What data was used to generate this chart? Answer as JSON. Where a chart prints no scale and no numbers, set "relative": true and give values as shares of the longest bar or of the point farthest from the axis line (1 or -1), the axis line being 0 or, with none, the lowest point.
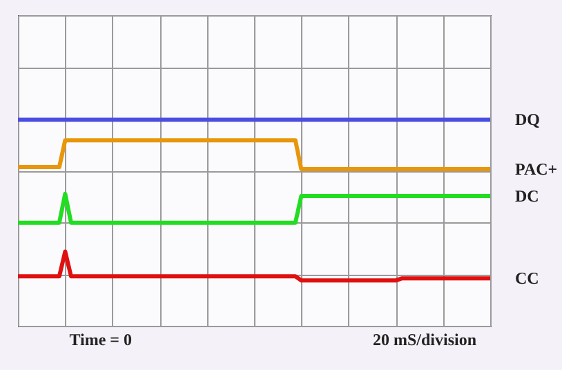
{
  "chart_data": {
    "type": "line",
    "relative": true,
    "grid": true,
    "marker": "none",
    "line_style": "solid",
    "categories": [
      null,
      null,
      null,
      null,
      null,
      null,
      null,
      null,
      null,
      null,
      null,
      null,
      null,
      null,
      null,
      null,
      null,
      null,
      null,
      null,
      null,
      null,
      null,
      null,
      null,
      null,
      null,
      null,
      null,
      null,
      null,
      null,
      null,
      null,
      null,
      null,
      null,
      null,
      null,
      null,
      null,
      null,
      null,
      null,
      null,
      null,
      null,
      null,
      null,
      null,
      null,
      null,
      null,
      null,
      null,
      null,
      null,
      null,
      null,
      null,
      null,
      null,
      null,
      null,
      null,
      null,
      null,
      null,
      null,
      null,
      null,
      null,
      null,
      null,
      null,
      null,
      null,
      null,
      null,
      null,
      null
    ],
    "series": [
      {
        "name": "DQ",
        "color": "#4a4ee0",
        "values": [
          1,
          1,
          1,
          1,
          1,
          1,
          1,
          1,
          1,
          1,
          1,
          1,
          1,
          1,
          1,
          1,
          1,
          1,
          1,
          1,
          1,
          1,
          1,
          1,
          1,
          1,
          1,
          1,
          1,
          1,
          1,
          1,
          1,
          1,
          1,
          1,
          1,
          1,
          1,
          1,
          1,
          1,
          1,
          1,
          1,
          1,
          1,
          1,
          1,
          1,
          1,
          1,
          1,
          1,
          1,
          1,
          1,
          1,
          1,
          1,
          1,
          1,
          1,
          1,
          1,
          1,
          1,
          1,
          1,
          1,
          1,
          1,
          1,
          1,
          1,
          1,
          1,
          1,
          1,
          1,
          1
        ]
      },
      {
        "name": "PAC+",
        "color": "#e8960a",
        "values": [
          0.77,
          0.77,
          0.77,
          0.77,
          0.77,
          0.77,
          0.77,
          0.77,
          0.9,
          0.9,
          0.9,
          0.9,
          0.9,
          0.9,
          0.9,
          0.9,
          0.9,
          0.9,
          0.9,
          0.9,
          0.9,
          0.9,
          0.9,
          0.9,
          0.9,
          0.9,
          0.9,
          0.9,
          0.9,
          0.9,
          0.9,
          0.9,
          0.9,
          0.9,
          0.9,
          0.9,
          0.9,
          0.9,
          0.9,
          0.9,
          0.9,
          0.9,
          0.9,
          0.9,
          0.9,
          0.9,
          0.9,
          0.9,
          0.76,
          0.76,
          0.76,
          0.76,
          0.76,
          0.76,
          0.76,
          0.76,
          0.76,
          0.76,
          0.76,
          0.76,
          0.76,
          0.76,
          0.76,
          0.76,
          0.76,
          0.76,
          0.76,
          0.76,
          0.76,
          0.76,
          0.76,
          0.76,
          0.76,
          0.76,
          0.76,
          0.76,
          0.76,
          0.76,
          0.76,
          0.76,
          0.76
        ]
      },
      {
        "name": "DC",
        "color": "#22dd22",
        "values": [
          0.5,
          0.5,
          0.5,
          0.5,
          0.5,
          0.5,
          0.5,
          0.5,
          0.64,
          0.5,
          0.5,
          0.5,
          0.5,
          0.5,
          0.5,
          0.5,
          0.5,
          0.5,
          0.5,
          0.5,
          0.5,
          0.5,
          0.5,
          0.5,
          0.5,
          0.5,
          0.5,
          0.5,
          0.5,
          0.5,
          0.5,
          0.5,
          0.5,
          0.5,
          0.5,
          0.5,
          0.5,
          0.5,
          0.5,
          0.5,
          0.5,
          0.5,
          0.5,
          0.5,
          0.5,
          0.5,
          0.5,
          0.5,
          0.63,
          0.63,
          0.63,
          0.63,
          0.63,
          0.63,
          0.63,
          0.63,
          0.63,
          0.63,
          0.63,
          0.63,
          0.63,
          0.63,
          0.63,
          0.63,
          0.63,
          0.63,
          0.63,
          0.63,
          0.63,
          0.63,
          0.63,
          0.63,
          0.63,
          0.63,
          0.63,
          0.63,
          0.63,
          0.63,
          0.63,
          0.63,
          0.63
        ]
      },
      {
        "name": "CC",
        "color": "#e01010",
        "values": [
          0.24,
          0.24,
          0.24,
          0.24,
          0.24,
          0.24,
          0.24,
          0.24,
          0.36,
          0.24,
          0.24,
          0.24,
          0.24,
          0.24,
          0.24,
          0.24,
          0.24,
          0.24,
          0.24,
          0.24,
          0.24,
          0.24,
          0.24,
          0.24,
          0.24,
          0.24,
          0.24,
          0.24,
          0.24,
          0.24,
          0.24,
          0.24,
          0.24,
          0.24,
          0.24,
          0.24,
          0.24,
          0.24,
          0.24,
          0.24,
          0.24,
          0.24,
          0.24,
          0.24,
          0.24,
          0.24,
          0.24,
          0.24,
          0.22,
          0.22,
          0.22,
          0.22,
          0.22,
          0.22,
          0.22,
          0.22,
          0.22,
          0.22,
          0.22,
          0.22,
          0.22,
          0.22,
          0.22,
          0.22,
          0.22,
          0.23,
          0.23,
          0.23,
          0.23,
          0.23,
          0.23,
          0.23,
          0.23,
          0.23,
          0.23,
          0.23,
          0.23,
          0.23,
          0.23,
          0.23,
          0.23
        ]
      }
    ],
    "annotations": [
      "Time = 0",
      "20 mS/division"
    ]
  }
}
